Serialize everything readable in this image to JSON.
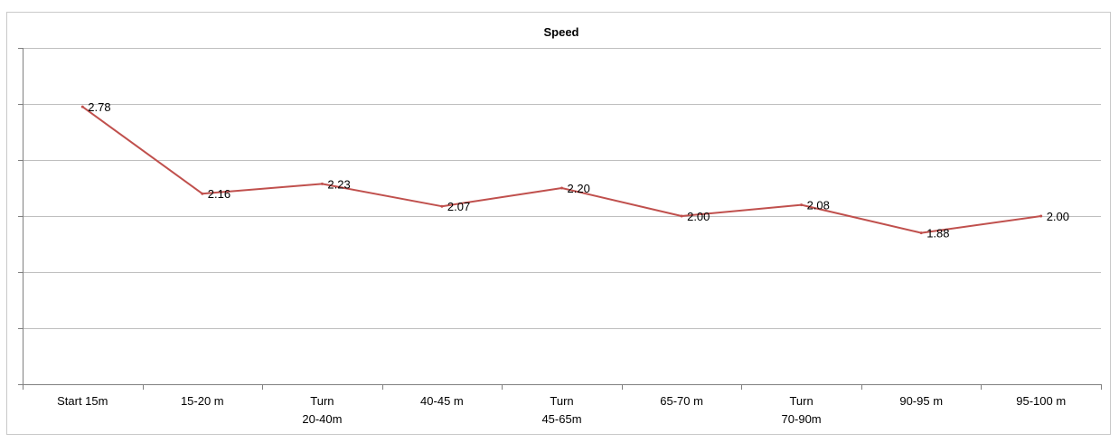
{
  "chart_data": {
    "type": "line",
    "title": "Speed",
    "categories": [
      [
        "Start 15m"
      ],
      [
        "15-20 m"
      ],
      [
        "Turn",
        "20-40m"
      ],
      [
        "40-45 m"
      ],
      [
        "Turn",
        "45-65m"
      ],
      [
        "65-70 m"
      ],
      [
        "Turn",
        "70-90m"
      ],
      [
        "90-95 m"
      ],
      [
        "95-100 m"
      ]
    ],
    "series": [
      {
        "values": [
          2.78,
          2.16,
          2.23,
          2.07,
          2.2,
          2.0,
          2.08,
          1.88,
          2.0
        ],
        "labels": [
          "2.78",
          "2.16",
          "2.23",
          "2.07",
          "2.20",
          "2.00",
          "2.08",
          "1.88",
          "2.00"
        ],
        "color": "#c0504d"
      }
    ],
    "ylim": [
      0.8,
      3.2
    ],
    "y_gridlines": [
      0.8,
      1.2,
      1.6,
      2.0,
      2.4,
      2.8,
      3.2
    ],
    "y_tick_labels": "hidden",
    "grid": true,
    "legend": "none",
    "colors": {
      "grid": "#bfbfbf",
      "axis": "#808080",
      "line": "#c0504d"
    }
  }
}
